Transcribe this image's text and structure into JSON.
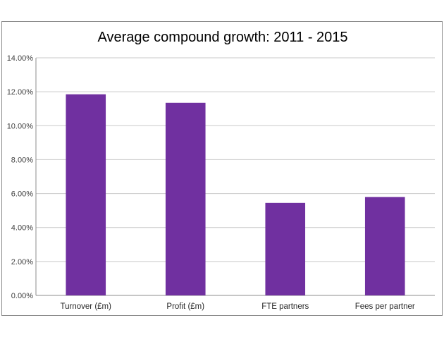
{
  "chart_data": {
    "type": "bar",
    "title": "Average compound growth: 2011 - 2015",
    "categories": [
      "Turnover (£m)",
      "Profit (£m)",
      "FTE partners",
      "Fees per partner"
    ],
    "values": [
      11.85,
      11.35,
      5.45,
      5.8
    ],
    "value_format": "percent",
    "ylim": [
      0,
      14
    ],
    "yticks": [
      "0.00%",
      "2.00%",
      "4.00%",
      "6.00%",
      "8.00%",
      "10.00%",
      "12.00%",
      "14.00%"
    ],
    "grid": true,
    "legend": "none",
    "bar_color": "#7030a0"
  }
}
